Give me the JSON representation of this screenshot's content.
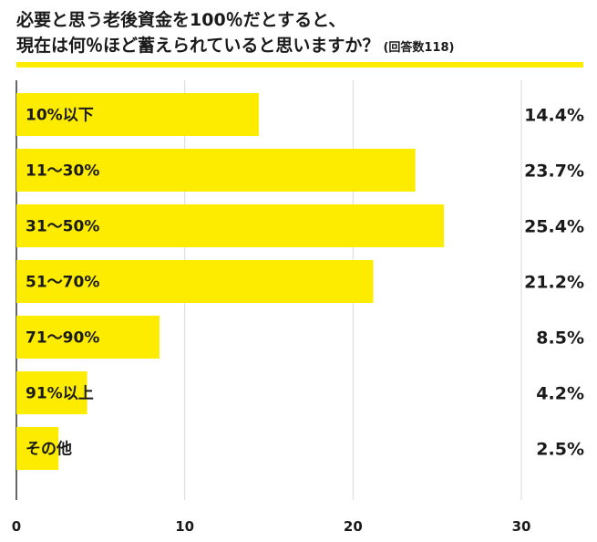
{
  "title": {
    "line1": "必要と思う老後資金を100％だとすると、",
    "line2": "現在は何％ほど蓄えられていると思いますか？",
    "note": "(回答数118)"
  },
  "colors": {
    "bar": "#fdec00",
    "rule": "#fdec00",
    "grid": "#d9d9d9",
    "axis": "#333333"
  },
  "chart_data": {
    "type": "bar",
    "orientation": "horizontal",
    "categories": [
      "10%以下",
      "11～30%",
      "31～50%",
      "51～70%",
      "71～90%",
      "91%以上",
      "その他"
    ],
    "values": [
      14.4,
      23.7,
      25.4,
      21.2,
      8.5,
      4.2,
      2.5
    ],
    "value_labels": [
      "14.4%",
      "23.7%",
      "25.4%",
      "21.2%",
      "8.5%",
      "4.2%",
      "2.5%"
    ],
    "xlim": [
      0,
      30
    ],
    "xticks": [
      0,
      10,
      20,
      30
    ],
    "xtick_labels": [
      "0",
      "10",
      "20",
      "30"
    ],
    "grid": true,
    "legend": false
  }
}
